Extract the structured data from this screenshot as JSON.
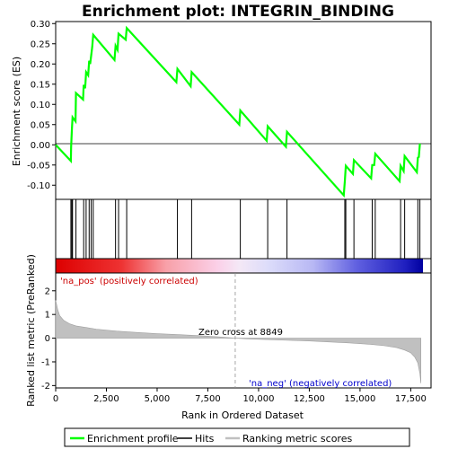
{
  "chart_data": {
    "type": "line",
    "title": "Enrichment plot: INTEGRIN_BINDING",
    "xlabel": "Rank in Ordered Dataset",
    "ylabel_top": "Enrichment score (ES)",
    "ylabel_bottom": "Ranked list metric (PreRanked)",
    "xlim": [
      0,
      18500
    ],
    "es_ylim": [
      -0.135,
      0.305
    ],
    "metric_ylim": [
      -2.1,
      2.75
    ],
    "x_ticks": [
      0,
      2500,
      5000,
      7500,
      10000,
      12500,
      15000,
      17500
    ],
    "x_tick_labels": [
      "0",
      "2,500",
      "5,000",
      "7,500",
      "10,000",
      "12,500",
      "15,000",
      "17,500"
    ],
    "es_ticks": [
      0.3,
      0.25,
      0.2,
      0.15,
      0.1,
      0.05,
      0.0,
      -0.05,
      -0.1
    ],
    "es_tick_labels": [
      "0.30",
      "0.25",
      "0.20",
      "0.15",
      "0.10",
      "0.05",
      "0.00",
      "-0.05",
      "-0.10"
    ],
    "metric_ticks": [
      2,
      1,
      0,
      -1,
      -2
    ],
    "metric_tick_labels": [
      "2",
      "1",
      "0",
      "-1",
      "-2"
    ],
    "series": [
      {
        "name": "Enrichment profile",
        "color": "#00ff00",
        "x": [
          0,
          750,
          760,
          800,
          830,
          980,
          1000,
          1350,
          1380,
          1450,
          1500,
          1600,
          1650,
          1700,
          1800,
          1850,
          2900,
          2950,
          3050,
          3100,
          3450,
          3500,
          5950,
          6000,
          6650,
          6700,
          9050,
          9100,
          10400,
          10450,
          11350,
          11400,
          14200,
          14250,
          14300,
          14650,
          14700,
          15550,
          15600,
          15700,
          15750,
          16950,
          17000,
          17150,
          17200,
          17800,
          17850,
          17900,
          17950
        ],
        "y": [
          0.0,
          -0.04,
          -0.005,
          0.04,
          0.068,
          0.058,
          0.128,
          0.112,
          0.148,
          0.14,
          0.18,
          0.172,
          0.208,
          0.2,
          0.242,
          0.272,
          0.21,
          0.245,
          0.235,
          0.275,
          0.26,
          0.289,
          0.155,
          0.188,
          0.145,
          0.18,
          0.05,
          0.085,
          0.01,
          0.046,
          -0.005,
          0.032,
          -0.125,
          -0.09,
          -0.052,
          -0.072,
          -0.038,
          -0.083,
          -0.05,
          -0.05,
          -0.022,
          -0.09,
          -0.052,
          -0.065,
          -0.028,
          -0.068,
          -0.032,
          -0.03,
          0.003
        ]
      },
      {
        "name": "Hits",
        "color": "#000000",
        "x": [
          750,
          800,
          830,
          1000,
          1380,
          1500,
          1650,
          1750,
          1850,
          2950,
          3100,
          3500,
          6000,
          6700,
          9100,
          10450,
          11400,
          14250,
          14300,
          14700,
          15600,
          15750,
          17000,
          17200,
          17850,
          17950
        ]
      },
      {
        "name": "Ranking metric scores",
        "color": "#c0c0c0",
        "x": [
          0,
          100,
          200,
          400,
          700,
          1000,
          1500,
          2000,
          3000,
          4000,
          5000,
          6000,
          7000,
          8000,
          8849,
          9500,
          10500,
          11500,
          12500,
          13500,
          14500,
          15500,
          16200,
          16800,
          17200,
          17500,
          17700,
          17850,
          17950,
          18000
        ],
        "y": [
          1.6,
          1.2,
          0.95,
          0.75,
          0.6,
          0.52,
          0.45,
          0.38,
          0.3,
          0.24,
          0.19,
          0.15,
          0.11,
          0.06,
          0.0,
          -0.03,
          -0.06,
          -0.09,
          -0.12,
          -0.16,
          -0.2,
          -0.26,
          -0.32,
          -0.4,
          -0.5,
          -0.62,
          -0.8,
          -1.05,
          -1.5,
          -1.9
        ]
      }
    ],
    "annotations": {
      "pos_label": "'na_pos' (positively correlated)",
      "neg_label": "'na_neg' (negatively correlated)",
      "zero_cross": "Zero cross at 8849",
      "zero_cross_x": 8849,
      "pos_color": "#cc0000",
      "neg_color": "#0000cc"
    },
    "legend_position": "bottom",
    "grid": false
  }
}
